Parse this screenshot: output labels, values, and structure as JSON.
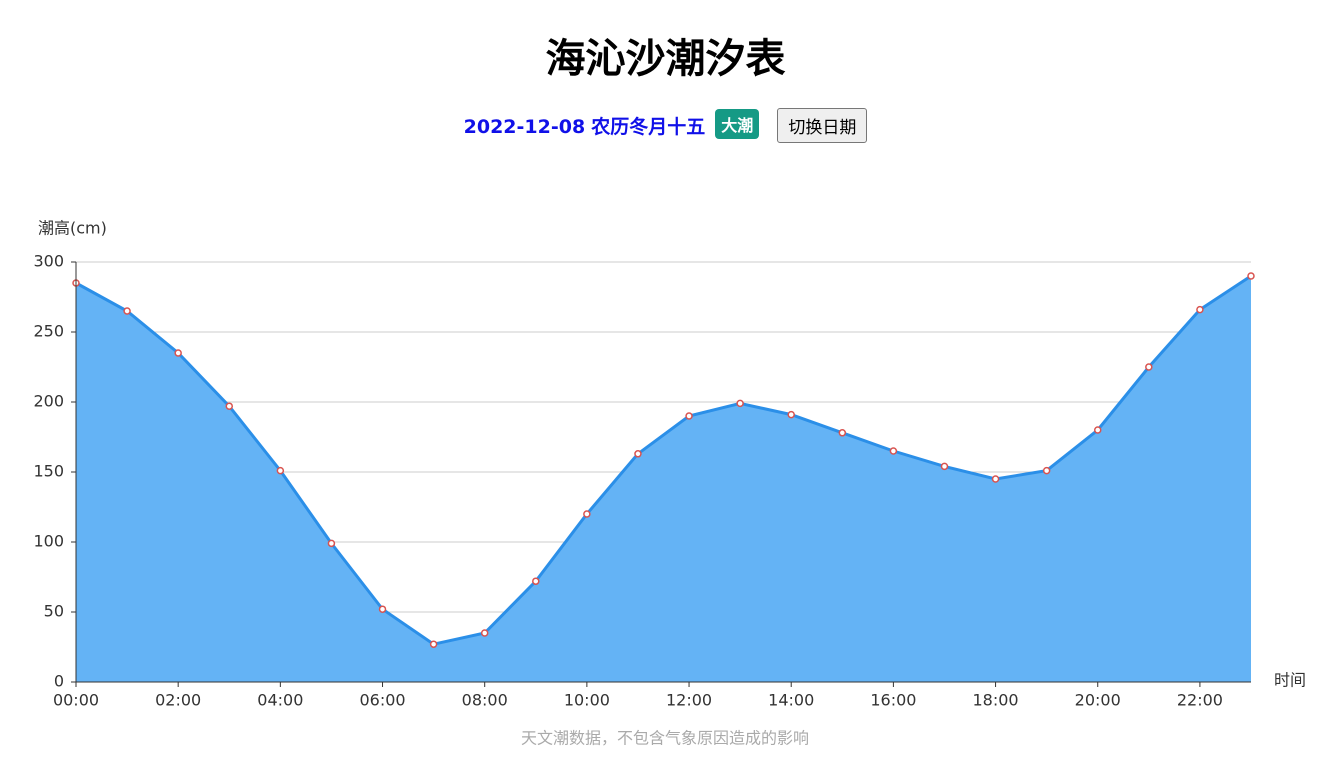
{
  "header": {
    "title": "海沁沙潮汐表",
    "date": "2022-12-08",
    "lunar_date": "农历冬月十五",
    "badge": "大潮",
    "button": "切换日期"
  },
  "chart_data": {
    "type": "line",
    "area": true,
    "y_label": "潮高(cm)",
    "x_label": "时间",
    "note": "天文潮数据，不包含气象原因造成的影响",
    "categories": [
      "00:00",
      null,
      "02:00",
      null,
      "04:00",
      null,
      "06:00",
      null,
      "08:00",
      null,
      "10:00",
      null,
      "12:00",
      null,
      "14:00",
      null,
      "16:00",
      null,
      "18:00",
      null,
      "20:00",
      null,
      "22:00",
      null
    ],
    "values": [
      285,
      265,
      235,
      197,
      151,
      99,
      52,
      27,
      35,
      72,
      120,
      163,
      190,
      199,
      191,
      178,
      165,
      154,
      145,
      151,
      180,
      225,
      266,
      290
    ],
    "color": "#2b8fe8",
    "area_color": "#64b3f5",
    "point_color": "#d9534f",
    "ylim": [
      0,
      300
    ],
    "yticks": [
      0,
      50,
      100,
      150,
      200,
      250,
      300
    ],
    "grid": true
  }
}
